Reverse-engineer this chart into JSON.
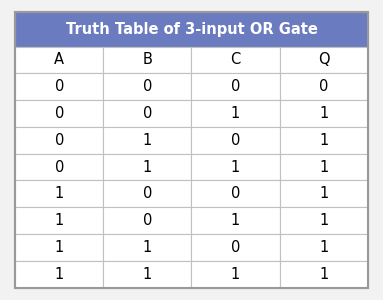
{
  "title": "Truth Table of 3-input OR Gate",
  "headers": [
    "A",
    "B",
    "C",
    "Q"
  ],
  "rows": [
    [
      "0",
      "0",
      "0",
      "0"
    ],
    [
      "0",
      "0",
      "1",
      "1"
    ],
    [
      "0",
      "1",
      "0",
      "1"
    ],
    [
      "0",
      "1",
      "1",
      "1"
    ],
    [
      "1",
      "0",
      "0",
      "1"
    ],
    [
      "1",
      "0",
      "1",
      "1"
    ],
    [
      "1",
      "1",
      "0",
      "1"
    ],
    [
      "1",
      "1",
      "1",
      "1"
    ]
  ],
  "header_bg": "#6B7BBF",
  "header_text_color": "#FFFFFF",
  "col_header_bg": "#FFFFFF",
  "cell_bg": "#FFFFFF",
  "cell_text_color": "#000000",
  "grid_color": "#C0C0C0",
  "outer_border_color": "#999999",
  "fig_bg": "#F2F2F2",
  "title_fontsize": 10.5,
  "cell_fontsize": 10.5,
  "header_fontsize": 10.5
}
